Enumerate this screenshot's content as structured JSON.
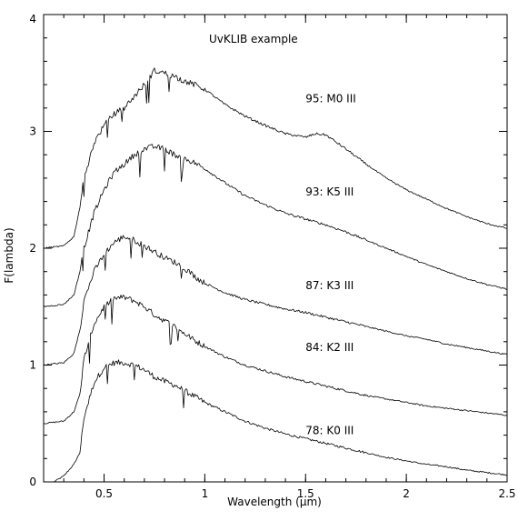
{
  "chart_data": {
    "type": "line",
    "title": "UvKLIB example",
    "xlabel": "Wavelength (μm)",
    "ylabel": "F(lambda)",
    "xlim": [
      0.2,
      2.5
    ],
    "ylim": [
      0,
      4
    ],
    "x_major_ticks": [
      0.5,
      1,
      1.5,
      2,
      2.5
    ],
    "x_tick_labels": [
      "0.5",
      "1",
      "1.5",
      "2",
      "2.5"
    ],
    "y_major_ticks": [
      0,
      1,
      2,
      3,
      4
    ],
    "y_tick_labels": [
      "0",
      "1",
      "2",
      "3",
      "4"
    ],
    "minor_tick_step_x": 0.1,
    "minor_tick_step_y": 0.2,
    "grid": false,
    "legend": "none",
    "line_color": "#000000",
    "series": [
      {
        "name": "78: K0 III",
        "label_at": [
          1.5,
          0.41
        ],
        "x": [
          0.25,
          0.3,
          0.35,
          0.38,
          0.4,
          0.45,
          0.5,
          0.55,
          0.6,
          0.65,
          0.7,
          0.75,
          0.8,
          0.85,
          0.9,
          0.95,
          1.0,
          1.1,
          1.2,
          1.3,
          1.4,
          1.5,
          1.6,
          1.7,
          1.8,
          1.9,
          2.0,
          2.1,
          2.2,
          2.3,
          2.4,
          2.5
        ],
        "y": [
          0.0,
          0.05,
          0.15,
          0.25,
          0.55,
          0.85,
          0.98,
          1.02,
          1.02,
          1.0,
          0.96,
          0.9,
          0.86,
          0.83,
          0.78,
          0.73,
          0.68,
          0.6,
          0.52,
          0.46,
          0.41,
          0.37,
          0.33,
          0.29,
          0.25,
          0.21,
          0.18,
          0.15,
          0.13,
          0.1,
          0.08,
          0.06
        ]
      },
      {
        "name": "84: K2 III",
        "label_at": [
          1.5,
          1.12
        ],
        "x": [
          0.2,
          0.3,
          0.35,
          0.38,
          0.4,
          0.45,
          0.5,
          0.55,
          0.6,
          0.65,
          0.7,
          0.75,
          0.8,
          0.85,
          0.9,
          0.95,
          1.0,
          1.1,
          1.2,
          1.3,
          1.4,
          1.5,
          1.6,
          1.7,
          1.8,
          1.9,
          2.0,
          2.1,
          2.2,
          2.3,
          2.4,
          2.5
        ],
        "y": [
          0.5,
          0.52,
          0.6,
          0.75,
          1.05,
          1.35,
          1.5,
          1.57,
          1.58,
          1.55,
          1.5,
          1.43,
          1.38,
          1.33,
          1.27,
          1.21,
          1.16,
          1.07,
          1.0,
          0.95,
          0.9,
          0.86,
          0.82,
          0.78,
          0.74,
          0.71,
          0.68,
          0.65,
          0.63,
          0.61,
          0.59,
          0.57
        ]
      },
      {
        "name": "87: K3 III",
        "label_at": [
          1.5,
          1.65
        ],
        "x": [
          0.2,
          0.3,
          0.35,
          0.38,
          0.4,
          0.45,
          0.5,
          0.55,
          0.6,
          0.65,
          0.7,
          0.75,
          0.8,
          0.85,
          0.9,
          0.95,
          1.0,
          1.1,
          1.2,
          1.3,
          1.4,
          1.5,
          1.6,
          1.7,
          1.8,
          1.9,
          2.0,
          2.1,
          2.2,
          2.3,
          2.4,
          2.5
        ],
        "y": [
          1.0,
          1.02,
          1.1,
          1.3,
          1.55,
          1.8,
          1.95,
          2.05,
          2.1,
          2.07,
          2.02,
          1.97,
          1.92,
          1.88,
          1.83,
          1.76,
          1.7,
          1.62,
          1.56,
          1.52,
          1.48,
          1.45,
          1.41,
          1.37,
          1.33,
          1.29,
          1.25,
          1.22,
          1.18,
          1.15,
          1.12,
          1.09
        ]
      },
      {
        "name": "93: K5 III",
        "label_at": [
          1.5,
          2.45
        ],
        "x": [
          0.2,
          0.3,
          0.35,
          0.38,
          0.4,
          0.45,
          0.5,
          0.55,
          0.6,
          0.65,
          0.7,
          0.75,
          0.8,
          0.85,
          0.9,
          0.95,
          1.0,
          1.1,
          1.2,
          1.3,
          1.4,
          1.5,
          1.6,
          1.7,
          1.8,
          1.9,
          2.0,
          2.1,
          2.2,
          2.3,
          2.4,
          2.5
        ],
        "y": [
          1.5,
          1.52,
          1.6,
          1.8,
          2.0,
          2.3,
          2.5,
          2.65,
          2.72,
          2.8,
          2.85,
          2.87,
          2.85,
          2.8,
          2.77,
          2.73,
          2.68,
          2.56,
          2.45,
          2.37,
          2.3,
          2.25,
          2.2,
          2.14,
          2.07,
          2.0,
          1.93,
          1.86,
          1.8,
          1.74,
          1.69,
          1.65
        ]
      },
      {
        "name": "95: M0 III",
        "label_at": [
          1.5,
          3.25
        ],
        "x": [
          0.2,
          0.3,
          0.35,
          0.38,
          0.4,
          0.45,
          0.5,
          0.55,
          0.6,
          0.65,
          0.7,
          0.75,
          0.8,
          0.85,
          0.9,
          0.95,
          1.0,
          1.1,
          1.2,
          1.3,
          1.4,
          1.5,
          1.55,
          1.6,
          1.7,
          1.8,
          1.9,
          2.0,
          2.1,
          2.2,
          2.3,
          2.4,
          2.5
        ],
        "y": [
          2.0,
          2.02,
          2.1,
          2.35,
          2.6,
          2.9,
          3.05,
          3.15,
          3.2,
          3.3,
          3.4,
          3.52,
          3.5,
          3.47,
          3.43,
          3.4,
          3.36,
          3.23,
          3.13,
          3.05,
          2.98,
          2.95,
          2.98,
          2.97,
          2.85,
          2.72,
          2.6,
          2.5,
          2.42,
          2.34,
          2.27,
          2.21,
          2.17
        ]
      }
    ]
  }
}
